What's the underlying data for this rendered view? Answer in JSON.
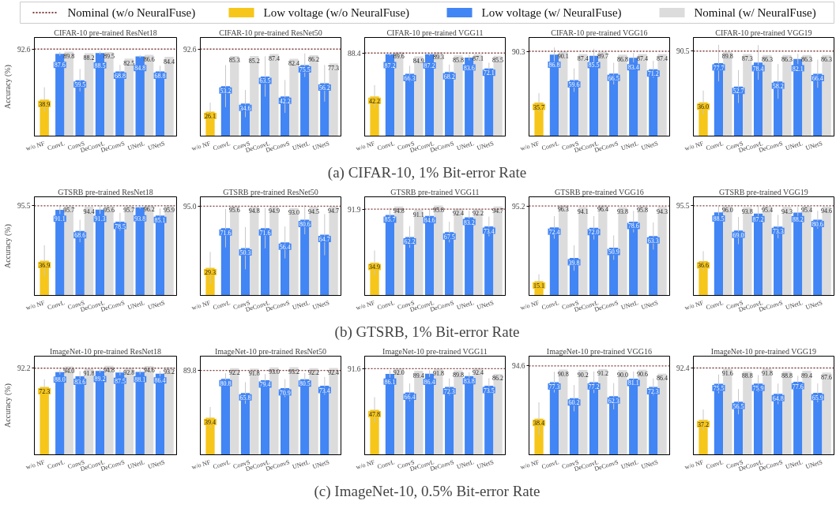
{
  "chart_data": [
    {
      "type": "bar",
      "title": "CIFAR-10 pre-trained ResNet18",
      "ylabel": "Accuracy (%)",
      "categories": [
        "w/o NF",
        "ConvL",
        "ConvS",
        "DeConvL",
        "DeConvS",
        "UNetL",
        "UNetS"
      ],
      "series": [
        {
          "name": "Low voltage (w/o NeuralFuse)",
          "color": "#f6c61a",
          "values": [
            38.9,
            null,
            null,
            null,
            null,
            null,
            null
          ],
          "value_labels": [
            "38.9",
            null,
            null,
            null,
            null,
            null,
            null
          ],
          "errors": [
            13,
            null,
            null,
            null,
            null,
            null,
            null
          ]
        },
        {
          "name": "Low voltage (w/ NeuralFuse)",
          "color": "#4285f4",
          "values": [
            null,
            87.6,
            59.5,
            88.5,
            68.8,
            84.8,
            68.8
          ],
          "value_labels": [
            null,
            "87.6",
            "59.5",
            "88.5",
            "68.8",
            "84.8",
            "68.8"
          ],
          "errors": [
            null,
            2,
            12,
            1.5,
            7,
            1.5,
            6
          ]
        },
        {
          "name": "Nominal (w/ NeuralFuse)",
          "color": "#dcdcdc",
          "values": [
            null,
            89.8,
            88.2,
            89.5,
            82.5,
            86.6,
            84.4
          ],
          "value_labels": [
            null,
            "89.8",
            "88.2",
            "89.5",
            "82.5",
            "86.6",
            "84.4"
          ]
        }
      ],
      "ylim": [
        0,
        105
      ],
      "yticks": [
        92.6
      ],
      "ref_lines": [
        {
          "axis": "y",
          "value": 92.6,
          "label": "Nominal (w/o NeuralFuse)",
          "color": "#7f3f3f",
          "line_style": "dotted"
        }
      ],
      "grid": false,
      "legend": "top"
    },
    {
      "type": "bar",
      "title": "CIFAR-10 pre-trained ResNet50",
      "categories": [
        "w/o NF",
        "ConvL",
        "ConvS",
        "DeConvL",
        "DeConvS",
        "UNetL",
        "UNetS"
      ],
      "series": [
        {
          "color": "#f6c61a",
          "values": [
            26.1,
            null,
            null,
            null,
            null,
            null,
            null
          ],
          "value_labels": [
            "26.1",
            null,
            null,
            null,
            null,
            null,
            null
          ],
          "errors": [
            9.5,
            null,
            null,
            null,
            null,
            null,
            null
          ]
        },
        {
          "color": "#4285f4",
          "values": [
            null,
            53.2,
            34.6,
            63.5,
            42.2,
            75.5,
            56.2
          ],
          "value_labels": [
            null,
            "53.2",
            "34.6",
            "63.5",
            "42.2",
            "75.5",
            "56.2"
          ],
          "errors": [
            null,
            22.5,
            14.5,
            21.5,
            17.5,
            12.5,
            19.5
          ]
        },
        {
          "color": "#dcdcdc",
          "values": [
            null,
            85.3,
            85.2,
            87.4,
            82.4,
            86.2,
            77.3
          ],
          "value_labels": [
            null,
            "85.3",
            "85.2",
            "87.4",
            "82.4",
            "86.2",
            "77.3"
          ]
        }
      ],
      "ylim": [
        0,
        105
      ],
      "yticks": [
        92.6
      ],
      "ref_lines": [
        {
          "axis": "y",
          "value": 92.6,
          "color": "#7f3f3f",
          "line_style": "dotted"
        }
      ],
      "grid": false
    },
    {
      "type": "bar",
      "title": "CIFAR-10 pre-trained VGG11",
      "categories": [
        "w/o NF",
        "ConvL",
        "ConvS",
        "DeConvL",
        "DeConvS",
        "UNetL",
        "UNetS"
      ],
      "series": [
        {
          "color": "#f6c61a",
          "values": [
            42.2,
            null,
            null,
            null,
            null,
            null,
            null
          ],
          "value_labels": [
            "42.2",
            null,
            null,
            null,
            null,
            null,
            null
          ],
          "errors": [
            12,
            null,
            null,
            null,
            null,
            null,
            null
          ]
        },
        {
          "color": "#4285f4",
          "values": [
            null,
            87.2,
            66.3,
            87.2,
            68.2,
            83.6,
            72.1
          ],
          "value_labels": [
            null,
            "87.2",
            "66.3",
            "87.2",
            "68.2",
            "83.6",
            "72.1"
          ],
          "errors": [
            null,
            1.5,
            8.5,
            1.5,
            8,
            3,
            6
          ]
        },
        {
          "color": "#dcdcdc",
          "values": [
            null,
            89.6,
            84.9,
            89.3,
            85.8,
            87.1,
            85.5
          ],
          "value_labels": [
            null,
            "89.6",
            "84.9",
            "89.3",
            "85.8",
            "87.1",
            "85.5"
          ]
        }
      ],
      "ylim": [
        0,
        105
      ],
      "yticks": [
        88.4
      ],
      "ref_lines": [
        {
          "axis": "y",
          "value": 88.4,
          "color": "#7f3f3f",
          "line_style": "dotted"
        }
      ],
      "grid": false,
      "annotations": [
        "(a) CIFAR-10, 1% Bit-error Rate"
      ]
    },
    {
      "type": "bar",
      "title": "CIFAR-10 pre-trained VGG16",
      "categories": [
        "w/o NF",
        "ConvL",
        "ConvS",
        "DeConvL",
        "DeConvS",
        "UNetL",
        "UNetS"
      ],
      "series": [
        {
          "color": "#f6c61a",
          "values": [
            35.7,
            null,
            null,
            null,
            null,
            null,
            null
          ],
          "value_labels": [
            "35.7",
            null,
            null,
            null,
            null,
            null,
            null
          ],
          "errors": [
            10,
            null,
            null,
            null,
            null,
            null,
            null
          ]
        },
        {
          "color": "#4285f4",
          "values": [
            null,
            86.8,
            59.6,
            85.5,
            66.5,
            83.4,
            71.2
          ],
          "value_labels": [
            null,
            "86.8",
            "59.6",
            "85.5",
            "66.5",
            "83.4",
            "71.2"
          ],
          "errors": [
            null,
            7.5,
            12.5,
            7.5,
            11.5,
            5,
            9
          ]
        },
        {
          "color": "#dcdcdc",
          "values": [
            null,
            90.1,
            87.4,
            89.7,
            86.8,
            87.4,
            87.4
          ],
          "value_labels": [
            null,
            "90.1",
            "87.4",
            "89.7",
            "86.8",
            "87.4",
            "87.4"
          ]
        }
      ],
      "ylim": [
        0,
        105
      ],
      "yticks": [
        90.3
      ],
      "ref_lines": [
        {
          "axis": "y",
          "value": 90.3,
          "color": "#7f3f3f",
          "line_style": "dotted"
        }
      ],
      "grid": false
    },
    {
      "type": "bar",
      "title": "CIFAR-10 pre-trained VGG19",
      "categories": [
        "w/o NF",
        "ConvL",
        "ConvS",
        "DeConvL",
        "DeConvS",
        "UNetL",
        "UNetS"
      ],
      "series": [
        {
          "color": "#f6c61a",
          "values": [
            36.0,
            null,
            null,
            null,
            null,
            null,
            null
          ],
          "value_labels": [
            "36.0",
            null,
            null,
            null,
            null,
            null,
            null
          ],
          "errors": [
            12.5,
            null,
            null,
            null,
            null,
            null,
            null
          ]
        },
        {
          "color": "#4285f4",
          "values": [
            null,
            77.7,
            52.7,
            78.4,
            58.2,
            82.1,
            66.4
          ],
          "value_labels": [
            null,
            "77.7",
            "52.7",
            "78.4",
            "58.2",
            "82.1",
            "66.4"
          ],
          "errors": [
            null,
            19.5,
            17.5,
            18.5,
            18.5,
            5.5,
            15
          ]
        },
        {
          "color": "#dcdcdc",
          "values": [
            null,
            89.8,
            87.3,
            86.3,
            86.3,
            86.3,
            86.3
          ],
          "value_labels": [
            null,
            "89.8",
            "87.3",
            "86.3",
            "86.3",
            "86.3",
            "86.3"
          ]
        }
      ],
      "ylim": [
        0,
        105
      ],
      "yticks": [
        90.5
      ],
      "ref_lines": [
        {
          "axis": "y",
          "value": 90.5,
          "color": "#7f3f3f",
          "line_style": "dotted"
        }
      ],
      "grid": false
    },
    {
      "type": "bar",
      "title": "GTSRB pre-trained ResNet18",
      "ylabel": "Accuracy (%)",
      "categories": [
        "w/o NF",
        "ConvL",
        "ConvS",
        "DeConvL",
        "DeConvS",
        "UNetL",
        "UNetS"
      ],
      "series": [
        {
          "color": "#f6c61a",
          "values": [
            36.9,
            null,
            null,
            null,
            null,
            null,
            null
          ],
          "value_labels": [
            "36.9",
            null,
            null,
            null,
            null,
            null,
            null
          ],
          "errors": [
            16.5,
            null,
            null,
            null,
            null,
            null,
            null
          ]
        },
        {
          "color": "#4285f4",
          "values": [
            null,
            91.1,
            68.6,
            91.3,
            78.5,
            93.8,
            85.1
          ],
          "value_labels": [
            null,
            "91.1",
            "68.6",
            "91.3",
            "78.5",
            "93.8",
            "85.1"
          ],
          "errors": [
            null,
            4.5,
            12,
            4.5,
            9.5,
            1.5,
            7.5
          ]
        },
        {
          "color": "#dcdcdc",
          "values": [
            null,
            95.7,
            94.4,
            95.6,
            95.7,
            96.2,
            95.9
          ],
          "value_labels": [
            null,
            "95.7",
            "94.4",
            "95.6",
            "95.7",
            "96.2",
            "95.9"
          ]
        }
      ],
      "ylim": [
        0,
        105
      ],
      "yticks": [
        95.5
      ],
      "ref_lines": [
        {
          "axis": "y",
          "value": 95.5,
          "color": "#7f3f3f",
          "line_style": "dotted"
        }
      ],
      "grid": false
    },
    {
      "type": "bar",
      "title": "GTSRB pre-trained ResNet50",
      "categories": [
        "w/o NF",
        "ConvL",
        "ConvS",
        "DeConvL",
        "DeConvS",
        "UNetL",
        "UNetS"
      ],
      "series": [
        {
          "color": "#f6c61a",
          "values": [
            29.3,
            null,
            null,
            null,
            null,
            null,
            null
          ],
          "value_labels": [
            "29.3",
            null,
            null,
            null,
            null,
            null,
            null
          ],
          "errors": [
            17,
            null,
            null,
            null,
            null,
            null,
            null
          ]
        },
        {
          "color": "#4285f4",
          "values": [
            null,
            71.6,
            50.3,
            71.6,
            56.4,
            80.6,
            64.7
          ],
          "value_labels": [
            null,
            "71.6",
            "50.3",
            "71.6",
            "56.4",
            "80.6",
            "64.7"
          ],
          "errors": [
            null,
            20.5,
            22.5,
            21.5,
            17,
            15.5,
            22
          ]
        },
        {
          "color": "#dcdcdc",
          "values": [
            null,
            95.6,
            94.8,
            94.9,
            93.0,
            94.5,
            94.7
          ],
          "value_labels": [
            null,
            "95.6",
            "94.8",
            "94.9",
            "93.0",
            "94.5",
            "94.7"
          ]
        }
      ],
      "ylim": [
        0,
        105
      ],
      "yticks": [
        {
          "value": 95.0,
          "label": "95.0"
        }
      ],
      "ref_lines": [
        {
          "axis": "y",
          "value": 95.0,
          "color": "#7f3f3f",
          "line_style": "dotted"
        }
      ],
      "grid": false
    },
    {
      "type": "bar",
      "title": "GTSRB pre-trained VGG11",
      "categories": [
        "w/o NF",
        "ConvL",
        "ConvS",
        "DeConvL",
        "DeConvS",
        "UNetL",
        "UNetS"
      ],
      "series": [
        {
          "color": "#f6c61a",
          "values": [
            34.9,
            null,
            null,
            null,
            null,
            null,
            null
          ],
          "value_labels": [
            "34.9",
            null,
            null,
            null,
            null,
            null,
            null
          ],
          "errors": [
            13,
            null,
            null,
            null,
            null,
            null,
            null
          ]
        },
        {
          "color": "#4285f4",
          "values": [
            null,
            85.7,
            62.2,
            84.6,
            67.5,
            83.2,
            73.4
          ],
          "value_labels": [
            null,
            "85.7",
            "62.2",
            "84.6",
            "67.5",
            "83.2",
            "73.4"
          ],
          "errors": [
            null,
            7.5,
            11.5,
            7.5,
            11,
            7,
            10.5
          ]
        },
        {
          "color": "#dcdcdc",
          "values": [
            null,
            94.8,
            91.1,
            95.8,
            92.4,
            92.2,
            94.7
          ],
          "value_labels": [
            null,
            "94.8",
            "91.1",
            "95.8",
            "92.4",
            "92.2",
            "94.7"
          ]
        }
      ],
      "ylim": [
        0,
        105
      ],
      "yticks": [
        91.9
      ],
      "ref_lines": [
        {
          "axis": "y",
          "value": 91.9,
          "color": "#7f3f3f",
          "line_style": "dotted"
        }
      ],
      "grid": false,
      "annotations": [
        "(b) GTSRB, 1% Bit-error Rate"
      ]
    },
    {
      "type": "bar",
      "title": "GTSRB pre-trained VGG16",
      "categories": [
        "w/o NF",
        "ConvL",
        "ConvS",
        "DeConvL",
        "DeConvS",
        "UNetL",
        "UNetS"
      ],
      "series": [
        {
          "color": "#f6c61a",
          "values": [
            15.1,
            null,
            null,
            null,
            null,
            null,
            null
          ],
          "value_labels": [
            "15.1",
            null,
            null,
            null,
            null,
            null,
            null
          ],
          "errors": [
            7.5,
            null,
            null,
            null,
            null,
            null,
            null
          ]
        },
        {
          "color": "#4285f4",
          "values": [
            null,
            72.4,
            39.8,
            72.0,
            50.9,
            78.6,
            63.3
          ],
          "value_labels": [
            null,
            "72.4",
            "39.8",
            "72.0",
            "50.9",
            "78.6",
            "63.3"
          ],
          "errors": [
            null,
            12,
            13.5,
            12.5,
            13,
            11.5,
            14.5
          ]
        },
        {
          "color": "#dcdcdc",
          "values": [
            null,
            96.3,
            94.1,
            96.4,
            93.8,
            95.8,
            94.3
          ],
          "value_labels": [
            null,
            "96.3",
            "94.1",
            "96.4",
            "93.8",
            "95.8",
            "94.3"
          ]
        }
      ],
      "ylim": [
        0,
        105
      ],
      "yticks": [
        95.2
      ],
      "ref_lines": [
        {
          "axis": "y",
          "value": 95.2,
          "color": "#7f3f3f",
          "line_style": "dotted"
        }
      ],
      "grid": false
    },
    {
      "type": "bar",
      "title": "GTSRB pre-trained VGG19",
      "categories": [
        "w/o NF",
        "ConvL",
        "ConvS",
        "DeConvL",
        "DeConvS",
        "UNetL",
        "UNetS"
      ],
      "series": [
        {
          "color": "#f6c61a",
          "values": [
            36.6,
            null,
            null,
            null,
            null,
            null,
            null
          ],
          "value_labels": [
            "36.6",
            null,
            null,
            null,
            null,
            null,
            null
          ],
          "errors": [
            10.5,
            null,
            null,
            null,
            null,
            null,
            null
          ]
        },
        {
          "color": "#4285f4",
          "values": [
            null,
            88.5,
            69.0,
            87.2,
            73.3,
            88.2,
            80.6
          ],
          "value_labels": [
            null,
            "88.5",
            "69.0",
            "87.2",
            "73.3",
            "88.2",
            "80.6"
          ],
          "errors": [
            null,
            6.5,
            14.5,
            8.5,
            12.5,
            6,
            9.5
          ]
        },
        {
          "color": "#dcdcdc",
          "values": [
            null,
            96.0,
            93.8,
            95.4,
            94.3,
            95.4,
            94.6
          ],
          "value_labels": [
            null,
            "96.0",
            "93.8",
            "95.4",
            "94.3",
            "95.4",
            "94.6"
          ]
        }
      ],
      "ylim": [
        0,
        105
      ],
      "yticks": [
        95.5
      ],
      "ref_lines": [
        {
          "axis": "y",
          "value": 95.5,
          "color": "#7f3f3f",
          "line_style": "dotted"
        }
      ],
      "grid": false
    },
    {
      "type": "bar",
      "title": "ImageNet-10 pre-trained ResNet18",
      "ylabel": "Accuracy (%)",
      "categories": [
        "w/o NF",
        "ConvL",
        "ConvS",
        "DeConvL",
        "DeConvS",
        "UNetL",
        "UNetS"
      ],
      "series": [
        {
          "color": "#f6c61a",
          "values": [
            72.3,
            null,
            null,
            null,
            null,
            null,
            null
          ],
          "value_labels": [
            "72.3",
            null,
            null,
            null,
            null,
            null,
            null
          ],
          "errors": [
            8,
            null,
            null,
            null,
            null,
            null,
            null
          ]
        },
        {
          "color": "#4285f4",
          "values": [
            null,
            88.0,
            83.6,
            89.2,
            87.5,
            88.1,
            86.4
          ],
          "value_labels": [
            null,
            "88.0",
            "83.6",
            "89.2",
            "87.5",
            "88.1",
            "86.4"
          ],
          "errors": [
            null,
            2.5,
            5.5,
            2,
            3,
            2.5,
            3
          ]
        },
        {
          "color": "#dcdcdc",
          "values": [
            null,
            94.0,
            91.8,
            94.8,
            92.8,
            94.6,
            93.2
          ],
          "value_labels": [
            null,
            "94.0",
            "91.8",
            "94.8",
            "92.8",
            "94.6",
            "93.2"
          ]
        }
      ],
      "ylim": [
        0,
        105
      ],
      "yticks": [
        92.2
      ],
      "ref_lines": [
        {
          "axis": "y",
          "value": 92.2,
          "color": "#7f3f3f",
          "line_style": "dotted"
        }
      ],
      "grid": false
    },
    {
      "type": "bar",
      "title": "ImageNet-10 pre-trained ResNet50",
      "categories": [
        "w/o NF",
        "ConvL",
        "ConvS",
        "DeConvL",
        "DeConvS",
        "UNetL",
        "UNetS"
      ],
      "series": [
        {
          "color": "#f6c61a",
          "values": [
            39.4,
            null,
            null,
            null,
            null,
            null,
            null
          ],
          "value_labels": [
            "39.4",
            null,
            null,
            null,
            null,
            null,
            null
          ],
          "errors": [
            11.5,
            null,
            null,
            null,
            null,
            null,
            null
          ]
        },
        {
          "color": "#4285f4",
          "values": [
            null,
            80.8,
            65.8,
            79.4,
            70.9,
            80.5,
            73.4
          ],
          "value_labels": [
            null,
            "80.8",
            "65.8",
            "79.4",
            "70.9",
            "80.5",
            "73.4"
          ],
          "errors": [
            null,
            6,
            11.5,
            6.5,
            9.5,
            6.5,
            9.5
          ]
        },
        {
          "color": "#dcdcdc",
          "values": [
            null,
            92.2,
            91.8,
            93.0,
            93.2,
            92.2,
            92.4
          ],
          "value_labels": [
            null,
            "92.2",
            "91.8",
            "93.0",
            "93.2",
            "92.2",
            "92.4"
          ]
        }
      ],
      "ylim": [
        0,
        105
      ],
      "yticks": [
        89.8
      ],
      "ref_lines": [
        {
          "axis": "y",
          "value": 89.8,
          "color": "#7f3f3f",
          "line_style": "dotted"
        }
      ],
      "grid": false
    },
    {
      "type": "bar",
      "title": "ImageNet-10 pre-trained VGG11",
      "categories": [
        "w/o NF",
        "ConvL",
        "ConvS",
        "DeConvL",
        "DeConvS",
        "UNetL",
        "UNetS"
      ],
      "series": [
        {
          "color": "#f6c61a",
          "values": [
            47.8,
            null,
            null,
            null,
            null,
            null,
            null
          ],
          "value_labels": [
            "47.8",
            null,
            null,
            null,
            null,
            null,
            null
          ],
          "errors": [
            13.5,
            null,
            null,
            null,
            null,
            null,
            null
          ]
        },
        {
          "color": "#4285f4",
          "values": [
            null,
            86.1,
            66.4,
            86.4,
            72.3,
            83.8,
            73.5
          ],
          "value_labels": [
            null,
            "86.1",
            "66.4",
            "86.4",
            "72.3",
            "83.8",
            "73.5"
          ],
          "errors": [
            null,
            4,
            9.5,
            3.5,
            9,
            4,
            8
          ]
        },
        {
          "color": "#dcdcdc",
          "values": [
            null,
            92.0,
            89.4,
            91.8,
            89.8,
            92.4,
            86.2
          ],
          "value_labels": [
            null,
            "92.0",
            "89.4",
            "91.8",
            "89.8",
            "92.4",
            "86.2"
          ]
        }
      ],
      "ylim": [
        0,
        105
      ],
      "yticks": [
        91.6
      ],
      "ref_lines": [
        {
          "axis": "y",
          "value": 91.6,
          "color": "#7f3f3f",
          "line_style": "dotted"
        }
      ],
      "grid": false,
      "annotations": [
        "(c) ImageNet-10, 0.5% Bit-error Rate"
      ]
    },
    {
      "type": "bar",
      "title": "ImageNet-10 pre-trained VGG16",
      "categories": [
        "w/o NF",
        "ConvL",
        "ConvS",
        "DeConvL",
        "DeConvS",
        "UNetL",
        "UNetS"
      ],
      "series": [
        {
          "color": "#f6c61a",
          "values": [
            38.4,
            null,
            null,
            null,
            null,
            null,
            null
          ],
          "value_labels": [
            "38.4",
            null,
            null,
            null,
            null,
            null,
            null
          ],
          "errors": [
            17.5,
            null,
            null,
            null,
            null,
            null,
            null
          ]
        },
        {
          "color": "#4285f4",
          "values": [
            null,
            77.3,
            60.2,
            77.2,
            62.3,
            81.1,
            72.3
          ],
          "value_labels": [
            null,
            "77.3",
            "60.2",
            "77.2",
            "62.3",
            "81.1",
            "72.3"
          ],
          "errors": [
            null,
            11,
            14,
            11.5,
            14,
            7.5,
            9
          ]
        },
        {
          "color": "#dcdcdc",
          "values": [
            null,
            90.8,
            90.2,
            91.2,
            90.0,
            90.6,
            86.4
          ],
          "value_labels": [
            null,
            "90.8",
            "90.2",
            "91.2",
            "90.0",
            "90.6",
            "86.4"
          ]
        }
      ],
      "ylim": [
        0,
        105
      ],
      "yticks": [
        94.6
      ],
      "ref_lines": [
        {
          "axis": "y",
          "value": 94.6,
          "color": "#7f3f3f",
          "line_style": "dotted"
        }
      ],
      "grid": false
    },
    {
      "type": "bar",
      "title": "ImageNet-10 pre-trained VGG19",
      "categories": [
        "w/o NF",
        "ConvL",
        "ConvS",
        "DeConvL",
        "DeConvS",
        "UNetL",
        "UNetS"
      ],
      "series": [
        {
          "color": "#f6c61a",
          "values": [
            37.2,
            null,
            null,
            null,
            null,
            null,
            null
          ],
          "value_labels": [
            "37.2",
            null,
            null,
            null,
            null,
            null,
            null
          ],
          "errors": [
            11,
            null,
            null,
            null,
            null,
            null,
            null
          ]
        },
        {
          "color": "#4285f4",
          "values": [
            null,
            75.5,
            56.5,
            75.9,
            64.8,
            77.6,
            65.9
          ],
          "value_labels": [
            null,
            "75.5",
            "56.5",
            "75.9",
            "64.8",
            "77.6",
            "65.9"
          ],
          "errors": [
            null,
            10,
            13.5,
            9,
            11,
            6.5,
            10
          ]
        },
        {
          "color": "#dcdcdc",
          "values": [
            null,
            91.6,
            88.8,
            91.8,
            88.8,
            89.4,
            87.6
          ],
          "value_labels": [
            null,
            "91.6",
            "88.8",
            "91.8",
            "88.8",
            "89.4",
            "87.6"
          ]
        }
      ],
      "ylim": [
        0,
        105
      ],
      "yticks": [
        92.4
      ],
      "ref_lines": [
        {
          "axis": "y",
          "value": 92.4,
          "color": "#7f3f3f",
          "line_style": "dotted"
        }
      ],
      "grid": false
    }
  ]
}
